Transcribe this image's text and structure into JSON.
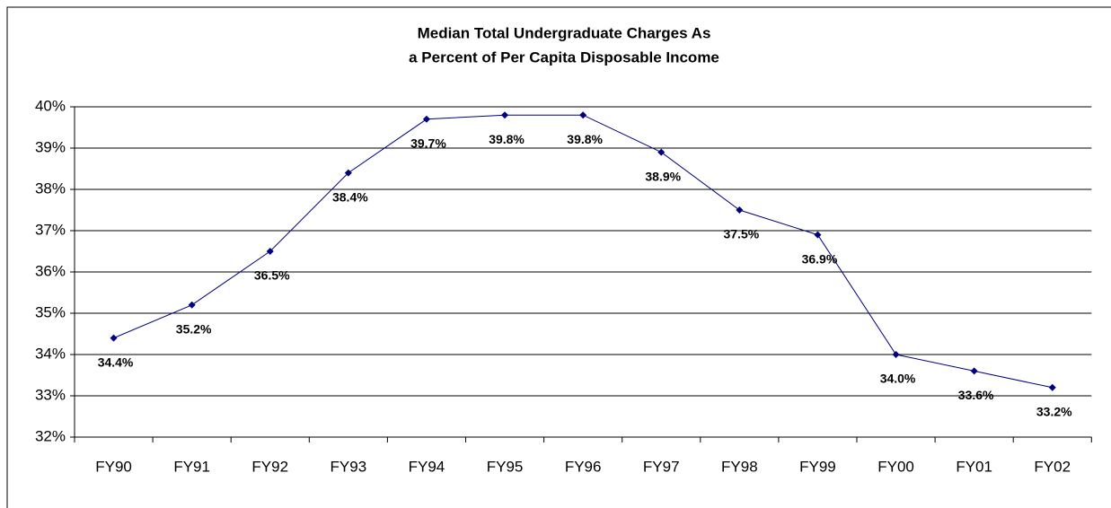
{
  "chart_data": {
    "type": "line",
    "title": [
      "Median Total Undergraduate Charges As",
      "a Percent of Per Capita Disposable Income"
    ],
    "categories": [
      "FY90",
      "FY91",
      "FY92",
      "FY93",
      "FY94",
      "FY95",
      "FY96",
      "FY97",
      "FY98",
      "FY99",
      "FY00",
      "FY01",
      "FY02"
    ],
    "values": [
      34.4,
      35.2,
      36.5,
      38.4,
      39.7,
      39.8,
      39.8,
      38.9,
      37.5,
      36.9,
      34.0,
      33.6,
      33.2
    ],
    "value_labels": [
      "34.4%",
      "35.2%",
      "36.5%",
      "38.4%",
      "39.7%",
      "39.8%",
      "39.8%",
      "38.9%",
      "37.5%",
      "36.9%",
      "34.0%",
      "33.6%",
      "33.2%"
    ],
    "color": "#000080",
    "ylim": [
      32,
      40
    ],
    "yticks": [
      {
        "value": 32,
        "label": "32%"
      },
      {
        "value": 33,
        "label": "33%"
      },
      {
        "value": 34,
        "label": "34%"
      },
      {
        "value": 35,
        "label": "35%"
      },
      {
        "value": 36,
        "label": "36%"
      },
      {
        "value": 37,
        "label": "37%"
      },
      {
        "value": 38,
        "label": "38%"
      },
      {
        "value": 39,
        "label": "39%"
      },
      {
        "value": 40,
        "label": "40%"
      }
    ],
    "grid": true
  }
}
